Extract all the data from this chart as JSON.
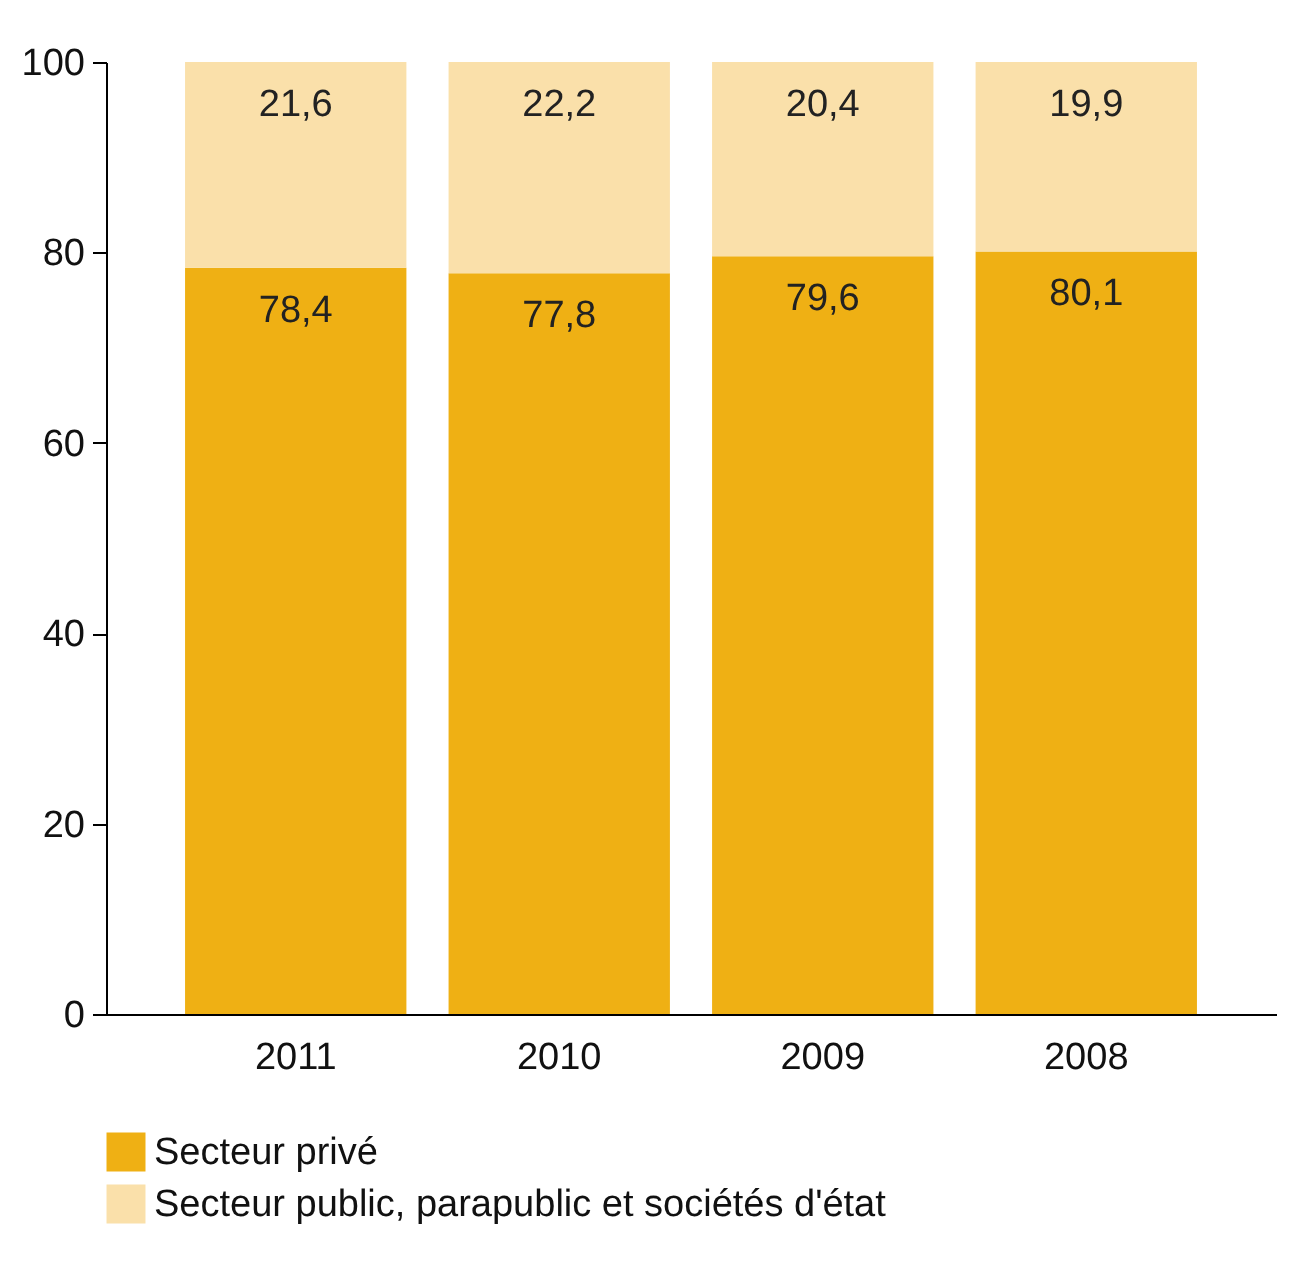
{
  "chart_data": {
    "type": "bar",
    "stacked": true,
    "categories": [
      "2011",
      "2010",
      "2009",
      "2008"
    ],
    "series": [
      {
        "name": "Secteur privé",
        "color": "#efb014",
        "values": [
          78.4,
          77.8,
          79.6,
          80.1
        ],
        "value_labels": [
          "78,4",
          "77,8",
          "79,6",
          "80,1"
        ]
      },
      {
        "name": "Secteur public, parapublic et sociétés d'état",
        "color": "#fae0aa",
        "values": [
          21.6,
          22.2,
          20.4,
          19.9
        ],
        "value_labels": [
          "21,6",
          "22,2",
          "20,4",
          "19,9"
        ]
      }
    ],
    "ylim": [
      0,
      100
    ],
    "yticks": [
      0,
      20,
      40,
      60,
      80,
      100
    ],
    "grid": false,
    "legend": "bottom"
  }
}
